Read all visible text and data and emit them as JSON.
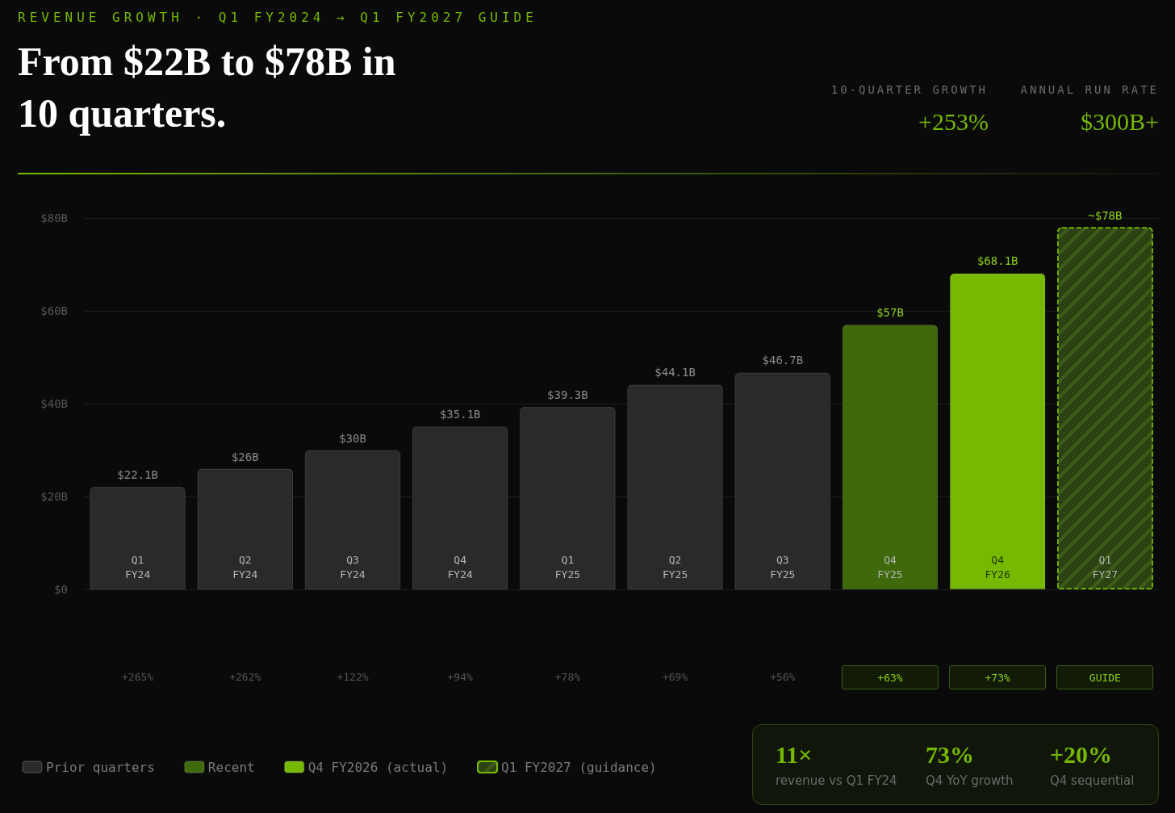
{
  "chart_data": {
    "type": "bar",
    "subtitle": "REVENUE GROWTH · Q1 FY2024 → Q1 FY2027 GUIDE",
    "title": "From $22B to $78B in 10 quarters.",
    "categories": [
      "Q1\nFY24",
      "Q2\nFY24",
      "Q3\nFY24",
      "Q4\nFY24",
      "Q1\nFY25",
      "Q2\nFY25",
      "Q3\nFY25",
      "Q4\nFY25",
      "Q4\nFY26",
      "Q1\nFY27"
    ],
    "series": [
      {
        "name": "Prior quarters",
        "color": "#2a2a2d",
        "values": [
          22.1,
          26,
          30,
          35.1,
          39.3,
          44.1,
          46.7,
          null,
          null,
          null
        ],
        "value_labels": [
          "$22.1B",
          "$26B",
          "$30B",
          "$35.1B",
          "$39.3B",
          "$44.1B",
          "$46.7B",
          null,
          null,
          null
        ]
      },
      {
        "name": "Recent",
        "color": "#3e6a0c",
        "values": [
          null,
          null,
          null,
          null,
          null,
          null,
          null,
          57,
          null,
          null
        ],
        "value_labels": [
          null,
          null,
          null,
          null,
          null,
          null,
          null,
          "$57B",
          null,
          null
        ]
      },
      {
        "name": "Q4 FY2026 (actual)",
        "color": "#76b900",
        "values": [
          null,
          null,
          null,
          null,
          null,
          null,
          null,
          null,
          68.1,
          null
        ],
        "value_labels": [
          null,
          null,
          null,
          null,
          null,
          null,
          null,
          null,
          "$68.1B",
          null
        ]
      },
      {
        "name": "Q1 FY2027 (guidance)",
        "color": "#2c4212",
        "values": [
          null,
          null,
          null,
          null,
          null,
          null,
          null,
          null,
          null,
          78
        ],
        "value_labels": [
          null,
          null,
          null,
          null,
          null,
          null,
          null,
          null,
          null,
          "~$78B"
        ]
      }
    ],
    "ylim": [
      0,
      80
    ],
    "yticks": [
      {
        "value": 0,
        "label": "$0"
      },
      {
        "value": 20,
        "label": "$20B"
      },
      {
        "value": 40,
        "label": "$40B"
      },
      {
        "value": 60,
        "label": "$60B"
      },
      {
        "value": 80,
        "label": "$80B"
      }
    ],
    "grid": "y",
    "legend": "bottom left",
    "annotations": [
      "10-QUARTER GROWTH",
      "+253%",
      "ANNUAL RUN RATE",
      "$300B+",
      "+265%",
      "+262%",
      "+122%",
      "+94%",
      "+78%",
      "+69%",
      "+56%",
      "+63%",
      "+73%",
      "GUIDE",
      "11×",
      "revenue vs Q1 FY24",
      "73%",
      "Q4 YoY growth",
      "+20%",
      "Q4 sequential"
    ]
  }
}
